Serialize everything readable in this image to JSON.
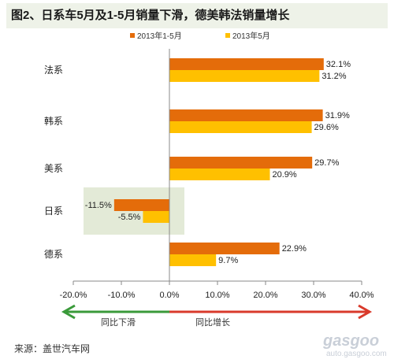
{
  "title": "图2、日系车5月及1-5月销量下滑，德美韩法销量增长",
  "source": "来源：盖世汽车网",
  "watermark": {
    "logo": "gasgoo",
    "url": "auto.gasgoo.com"
  },
  "colors": {
    "s1": "#e46c0a",
    "s2": "#ffc000",
    "green": "#3a9a3a",
    "red": "#d93a2b",
    "highlight": "#e3ead7"
  },
  "arrows": {
    "left": "同比下滑",
    "right": "同比增长"
  },
  "chart_data": {
    "type": "bar",
    "orientation": "horizontal",
    "categories": [
      "法系",
      "韩系",
      "美系",
      "日系",
      "德系"
    ],
    "series": [
      {
        "name": "2013年1-5月",
        "values": [
          32.1,
          31.9,
          29.7,
          -11.5,
          22.9
        ],
        "labels": [
          "32.1%",
          "31.9%",
          "29.7%",
          "-11.5%",
          "22.9%"
        ]
      },
      {
        "name": "2013年5月",
        "values": [
          31.2,
          29.6,
          20.9,
          -5.5,
          9.7
        ],
        "labels": [
          "31.2%",
          "29.6%",
          "20.9%",
          "-5.5%",
          "9.7%"
        ]
      }
    ],
    "xlim": [
      -20,
      40
    ],
    "xticks": [
      -20,
      -10,
      0,
      10,
      20,
      30,
      40
    ],
    "xtick_labels": [
      "-20.0%",
      "-10.0%",
      "0.0%",
      "10.0%",
      "20.0%",
      "30.0%",
      "40.0%"
    ],
    "legend_position": "top",
    "highlight_category": "日系",
    "grid": false
  }
}
